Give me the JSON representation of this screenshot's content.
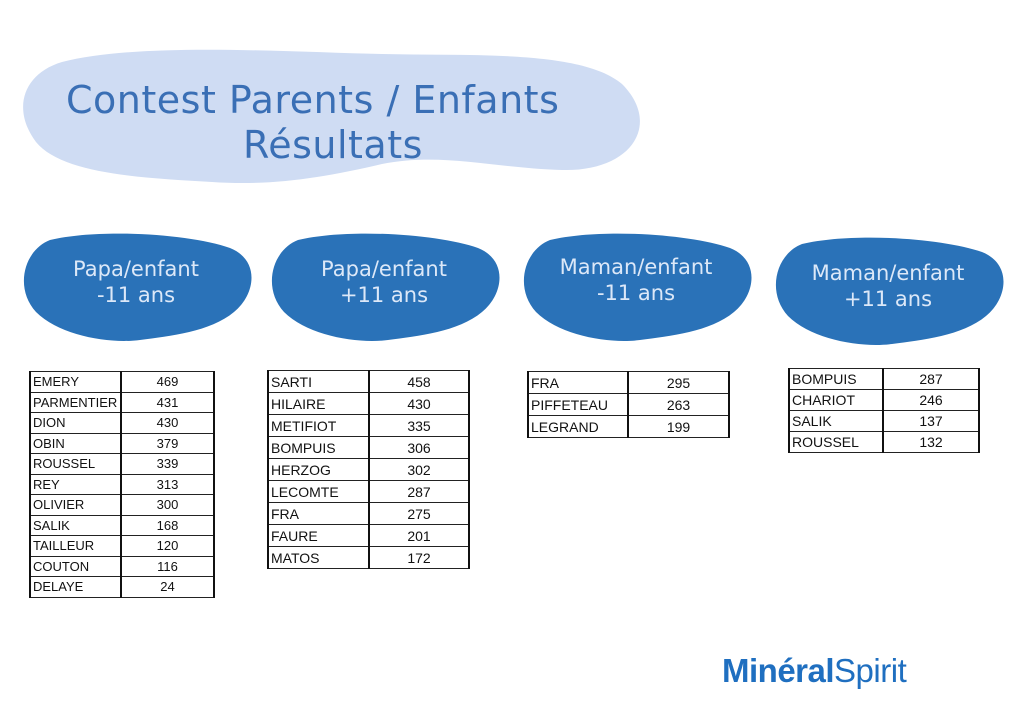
{
  "title": {
    "line1": "Contest Parents / Enfants",
    "line2": "Résultats"
  },
  "colors": {
    "title_blob": "#cfdcf3",
    "title_text": "#3a6fb5",
    "category_blob": "#2a72b8",
    "category_text": "#dce8f8",
    "logo": "#1f6fc0"
  },
  "categories": [
    {
      "label_line1": "Papa/enfant",
      "label_line2": "-11 ans",
      "rows": [
        {
          "name": "EMERY",
          "score": "469"
        },
        {
          "name": "PARMENTIER",
          "score": "431"
        },
        {
          "name": "DION",
          "score": "430"
        },
        {
          "name": "OBIN",
          "score": "379"
        },
        {
          "name": "ROUSSEL",
          "score": "339"
        },
        {
          "name": "REY",
          "score": "313"
        },
        {
          "name": "OLIVIER",
          "score": "300"
        },
        {
          "name": "SALIK",
          "score": "168"
        },
        {
          "name": "TAILLEUR",
          "score": "120"
        },
        {
          "name": "COUTON",
          "score": "116"
        },
        {
          "name": "DELAYE",
          "score": "24"
        }
      ]
    },
    {
      "label_line1": "Papa/enfant",
      "label_line2": "+11 ans",
      "rows": [
        {
          "name": "SARTI",
          "score": "458"
        },
        {
          "name": "HILAIRE",
          "score": "430"
        },
        {
          "name": "METIFIOT",
          "score": "335"
        },
        {
          "name": "BOMPUIS",
          "score": "306"
        },
        {
          "name": "HERZOG",
          "score": "302"
        },
        {
          "name": "LECOMTE",
          "score": "287"
        },
        {
          "name": "FRA",
          "score": "275"
        },
        {
          "name": "FAURE",
          "score": "201"
        },
        {
          "name": "MATOS",
          "score": "172"
        }
      ]
    },
    {
      "label_line1": "Maman/enfant",
      "label_line2": "-11 ans",
      "rows": [
        {
          "name": "FRA",
          "score": "295"
        },
        {
          "name": "PIFFETEAU",
          "score": "263"
        },
        {
          "name": "LEGRAND",
          "score": "199"
        }
      ]
    },
    {
      "label_line1": "Maman/enfant",
      "label_line2": "+11 ans",
      "rows": [
        {
          "name": "BOMPUIS",
          "score": "287"
        },
        {
          "name": "CHARIOT",
          "score": "246"
        },
        {
          "name": "SALIK",
          "score": "137"
        },
        {
          "name": "ROUSSEL",
          "score": "132"
        }
      ]
    }
  ],
  "logo": {
    "part1": "Minéral",
    "part2": "Spirit"
  }
}
